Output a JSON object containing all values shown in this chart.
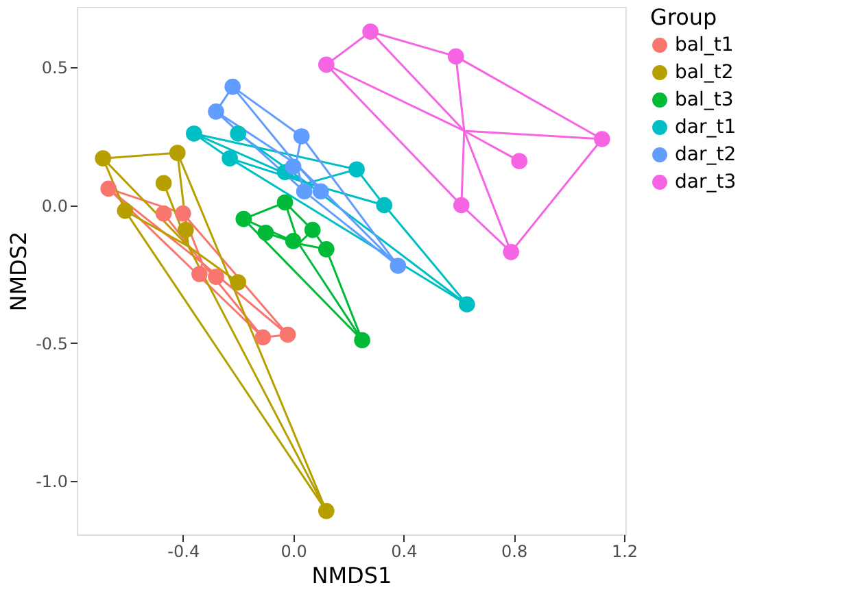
{
  "chart_data": {
    "type": "scatter",
    "xlabel": "NMDS1",
    "ylabel": "NMDS2",
    "legend_title": "Group",
    "legend": "right",
    "grid": false,
    "marker": "circle",
    "line_style": "solid",
    "xlim": [
      -0.785,
      1.205
    ],
    "ylim": [
      -1.195,
      0.72
    ],
    "xticks": [
      -0.4,
      {
        "value": 0,
        "label": "0.0"
      },
      0.4,
      0.8,
      1.2
    ],
    "yticks": [
      {
        "value": -1,
        "label": "-1.0"
      },
      -0.5,
      {
        "value": 0,
        "label": "0.0"
      },
      0.5
    ],
    "series": [
      {
        "type": "line",
        "marker": "none",
        "color": "#F8766D",
        "x": [
          -0.67,
          -0.4,
          -0.02,
          -0.11,
          -0.67,
          -0.33,
          -0.47,
          -0.33,
          -0.4,
          -0.33,
          -0.34,
          -0.33,
          -0.28,
          -0.33,
          -0.11,
          -0.33,
          -0.02
        ],
        "values": [
          0.06,
          -0.03,
          -0.47,
          -0.48,
          0.06,
          -0.21,
          -0.03,
          -0.21,
          -0.03,
          -0.21,
          -0.25,
          -0.21,
          -0.26,
          -0.21,
          -0.48,
          -0.21,
          -0.47
        ]
      },
      {
        "type": "line",
        "marker": "none",
        "color": "#B79F00",
        "x": [
          -0.69,
          -0.42,
          0.12,
          -0.61,
          -0.69,
          -0.38,
          -0.42,
          -0.38,
          -0.47,
          -0.38,
          -0.61,
          -0.38,
          -0.39,
          -0.38,
          -0.2,
          -0.38,
          0.12
        ],
        "values": [
          0.17,
          0.19,
          -1.11,
          -0.02,
          0.17,
          -0.15,
          0.19,
          -0.15,
          0.08,
          -0.15,
          -0.02,
          -0.15,
          -0.09,
          -0.15,
          -0.28,
          -0.15,
          -1.11
        ]
      },
      {
        "type": "line",
        "marker": "none",
        "color": "#00BA38",
        "x": [
          -0.18,
          -0.03,
          0.07,
          0.12,
          0.25,
          -0.18,
          0.02,
          -0.03,
          0.02,
          -0.1,
          0.02,
          0.0,
          0.02,
          0.07,
          0.02,
          0.12,
          0.02,
          0.25
        ],
        "values": [
          -0.05,
          0.01,
          -0.09,
          -0.16,
          -0.49,
          -0.05,
          -0.14,
          0.01,
          -0.14,
          -0.1,
          -0.14,
          -0.13,
          -0.14,
          -0.09,
          -0.14,
          -0.16,
          -0.14,
          -0.49
        ]
      },
      {
        "type": "line",
        "marker": "none",
        "color": "#00BFC4",
        "x": [
          -0.36,
          0.23,
          0.33,
          0.63,
          -0.23,
          -0.36,
          0.05,
          -0.2,
          0.05,
          -0.23,
          0.05,
          -0.03,
          0.05,
          0.23,
          0.05,
          0.33,
          0.05,
          0.63
        ],
        "values": [
          0.26,
          0.13,
          0.0,
          -0.36,
          0.17,
          0.26,
          0.08,
          0.26,
          0.08,
          0.17,
          0.08,
          0.12,
          0.08,
          0.13,
          0.08,
          0.0,
          0.08,
          -0.36
        ]
      },
      {
        "type": "line",
        "marker": "none",
        "color": "#619CFF",
        "x": [
          -0.22,
          0.03,
          0.38,
          0.04,
          -0.28,
          -0.22,
          0.01,
          -0.28,
          0.01,
          0.03,
          0.01,
          0.0,
          0.01,
          0.04,
          0.01,
          0.1,
          0.01,
          0.38
        ],
        "values": [
          0.43,
          0.25,
          -0.22,
          0.05,
          0.34,
          0.43,
          0.15,
          0.34,
          0.15,
          0.25,
          0.15,
          0.14,
          0.15,
          0.05,
          0.15,
          0.05,
          0.15,
          -0.22
        ]
      },
      {
        "type": "line",
        "marker": "none",
        "color": "#F564E3",
        "x": [
          0.12,
          0.28,
          0.59,
          1.12,
          0.79,
          0.61,
          0.12,
          0.62,
          0.28,
          0.62,
          0.59,
          0.62,
          1.12,
          0.62,
          0.82,
          0.62,
          0.61,
          0.62,
          0.79
        ],
        "values": [
          0.51,
          0.63,
          0.54,
          0.24,
          -0.17,
          0.0,
          0.51,
          0.27,
          0.63,
          0.27,
          0.54,
          0.27,
          0.24,
          0.27,
          0.16,
          0.27,
          0.0,
          0.27,
          -0.17
        ]
      },
      {
        "name": "bal_t1",
        "color": "#F8766D",
        "x": [
          -0.67,
          -0.47,
          -0.4,
          -0.34,
          -0.28,
          -0.11,
          -0.02
        ],
        "values": [
          0.06,
          -0.03,
          -0.03,
          -0.25,
          -0.26,
          -0.48,
          -0.47
        ]
      },
      {
        "name": "bal_t2",
        "color": "#B79F00",
        "x": [
          -0.69,
          -0.42,
          -0.47,
          -0.61,
          -0.39,
          -0.2,
          0.12
        ],
        "values": [
          0.17,
          0.19,
          0.08,
          -0.02,
          -0.09,
          -0.28,
          -1.11
        ]
      },
      {
        "name": "bal_t3",
        "color": "#00BA38",
        "x": [
          -0.18,
          -0.03,
          -0.1,
          0.0,
          0.07,
          0.12,
          0.25
        ],
        "values": [
          -0.05,
          0.01,
          -0.1,
          -0.13,
          -0.09,
          -0.16,
          -0.49
        ]
      },
      {
        "name": "dar_t1",
        "color": "#00BFC4",
        "x": [
          -0.36,
          -0.2,
          -0.23,
          -0.03,
          0.23,
          0.33,
          0.63
        ],
        "values": [
          0.26,
          0.26,
          0.17,
          0.12,
          0.13,
          0.0,
          -0.36
        ]
      },
      {
        "name": "dar_t2",
        "color": "#619CFF",
        "x": [
          -0.22,
          -0.28,
          0.03,
          0.0,
          0.04,
          0.1,
          0.38
        ],
        "values": [
          0.43,
          0.34,
          0.25,
          0.14,
          0.05,
          0.05,
          -0.22
        ]
      },
      {
        "name": "dar_t3",
        "color": "#F564E3",
        "x": [
          0.12,
          0.28,
          0.59,
          1.12,
          0.82,
          0.61,
          0.79
        ],
        "values": [
          0.51,
          0.63,
          0.54,
          0.24,
          0.16,
          0.0,
          -0.17
        ]
      }
    ]
  }
}
